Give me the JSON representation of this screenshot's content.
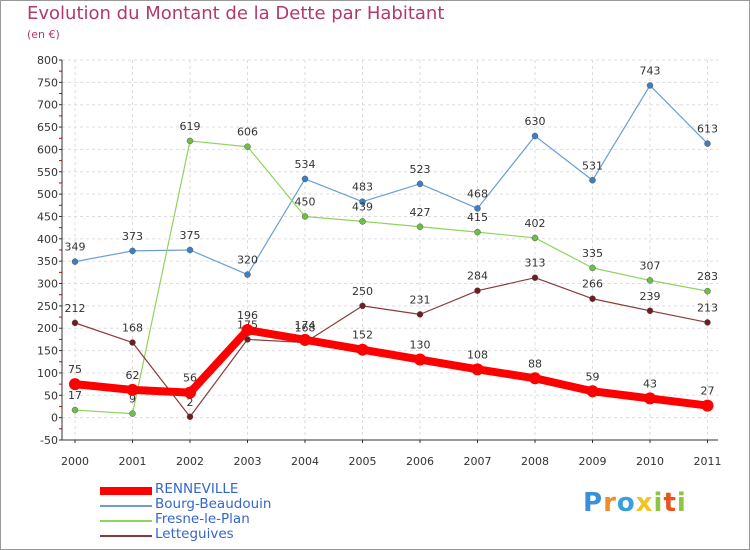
{
  "header": {
    "title": "Evolution du Montant de la Dette par Habitant",
    "subtitle": "(en €)"
  },
  "chart_data": {
    "type": "line",
    "x": [
      "2000",
      "2001",
      "2002",
      "2003",
      "2004",
      "2005",
      "2006",
      "2007",
      "2008",
      "2009",
      "2010",
      "2011"
    ],
    "ylim": [
      -50,
      800
    ],
    "yticks": [
      "-50",
      "0",
      "50",
      "100",
      "150",
      "200",
      "250",
      "300",
      "350",
      "400",
      "450",
      "500",
      "550",
      "600",
      "650",
      "700",
      "750",
      "800"
    ],
    "grid": true,
    "legend_position": "bottom-left",
    "series": [
      {
        "name": "Bourg-Beaudouin",
        "color": "#6a9fd4",
        "marker_color": "#3b7fc4",
        "values": [
          349,
          373,
          375,
          320,
          534,
          483,
          523,
          468,
          630,
          531,
          743,
          613
        ]
      },
      {
        "name": "Fresne-le-Plan",
        "color": "#8fd45e",
        "marker_color": "#6cc04a",
        "values": [
          17,
          9,
          619,
          606,
          450,
          439,
          427,
          415,
          402,
          335,
          307,
          283
        ]
      },
      {
        "name": "Letteguives",
        "color": "#8b3a3a",
        "marker_color": "#6e1e1e",
        "values": [
          212,
          168,
          2,
          175,
          168,
          250,
          231,
          284,
          313,
          266,
          239,
          213
        ]
      },
      {
        "name": "RENNEVILLE",
        "color": "#ff0000",
        "marker_color": "#ff0000",
        "values": [
          75,
          62,
          56,
          196,
          174,
          152,
          130,
          108,
          88,
          59,
          43,
          27
        ]
      }
    ],
    "legend_order": [
      "RENNEVILLE",
      "Bourg-Beaudouin",
      "Fresne-le-Plan",
      "Letteguives"
    ]
  },
  "logo": {
    "letters": [
      "P",
      "r",
      "o",
      "x",
      "i",
      "t",
      "i"
    ],
    "colors": [
      "#3a8fd9",
      "#f28c28",
      "#3aa0d9",
      "#f2c41f",
      "#8cc63f",
      "#e9531d",
      "#8cc63f"
    ]
  }
}
